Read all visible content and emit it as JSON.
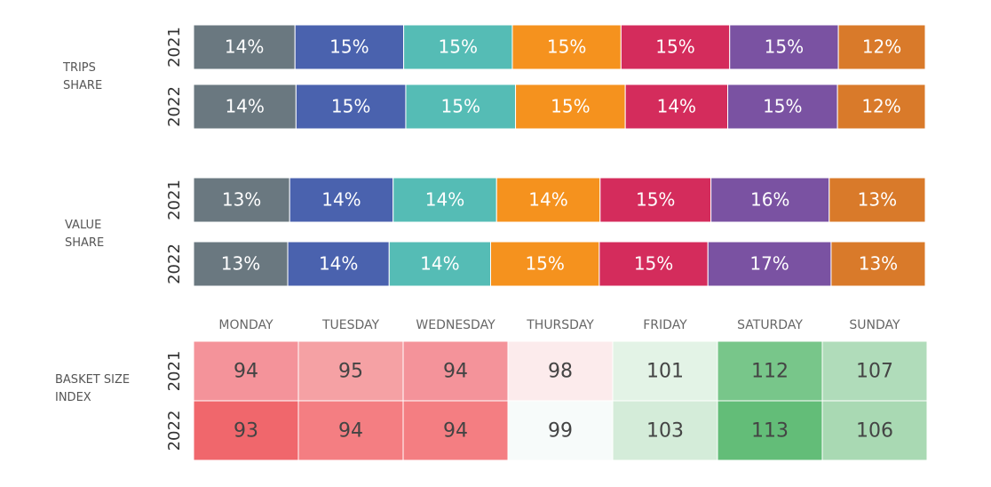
{
  "chart_data": [
    {
      "type": "bar",
      "title": "TRIPS SHARE",
      "categories": [
        "2021",
        "2022"
      ],
      "series": [
        {
          "color": "#6a7880",
          "values": [
            14,
            14
          ],
          "value_labels": [
            "14%",
            "14%"
          ]
        },
        {
          "color": "#4a62ae",
          "values": [
            15,
            15
          ],
          "value_labels": [
            "15%",
            "15%"
          ]
        },
        {
          "color": "#55bcb5",
          "values": [
            15,
            15
          ],
          "value_labels": [
            "15%",
            "15%"
          ]
        },
        {
          "color": "#f5921e",
          "values": [
            15,
            15
          ],
          "value_labels": [
            "15%",
            "15%"
          ]
        },
        {
          "color": "#d42c5c",
          "values": [
            15,
            14
          ],
          "value_labels": [
            "15%",
            "14%"
          ]
        },
        {
          "color": "#7a52a2",
          "values": [
            15,
            15
          ],
          "value_labels": [
            "15%",
            "15%"
          ]
        },
        {
          "color": "#d97a2a",
          "values": [
            12,
            12
          ],
          "value_labels": [
            "12%",
            "12%"
          ]
        }
      ]
    },
    {
      "type": "bar",
      "title": "VALUE SHARE",
      "categories": [
        "2021",
        "2022"
      ],
      "series": [
        {
          "color": "#6a7880",
          "values": [
            13,
            13
          ],
          "value_labels": [
            "13%",
            "13%"
          ]
        },
        {
          "color": "#4a62ae",
          "values": [
            14,
            14
          ],
          "value_labels": [
            "14%",
            "14%"
          ]
        },
        {
          "color": "#55bcb5",
          "values": [
            14,
            14
          ],
          "value_labels": [
            "14%",
            "14%"
          ]
        },
        {
          "color": "#f5921e",
          "values": [
            14,
            15
          ],
          "value_labels": [
            "14%",
            "15%"
          ]
        },
        {
          "color": "#d42c5c",
          "values": [
            15,
            15
          ],
          "value_labels": [
            "15%",
            "15%"
          ]
        },
        {
          "color": "#7a52a2",
          "values": [
            16,
            17
          ],
          "value_labels": [
            "16%",
            "17%"
          ]
        },
        {
          "color": "#d97a2a",
          "values": [
            13,
            13
          ],
          "value_labels": [
            "13%",
            "13%"
          ]
        }
      ]
    },
    {
      "type": "heatmap",
      "title": "BASKET SIZE INDEX",
      "x": [
        "MONDAY",
        "TUESDAY",
        "WEDNESDAY",
        "THURSDAY",
        "FRIDAY",
        "SATURDAY",
        "SUNDAY"
      ],
      "y": [
        "2021",
        "2022"
      ],
      "values": [
        [
          94,
          95,
          94,
          98,
          101,
          112,
          107
        ],
        [
          93,
          94,
          94,
          99,
          103,
          113,
          106
        ]
      ],
      "colors": [
        [
          "#f4939a",
          "#f5a1a4",
          "#f4939a",
          "#fcebec",
          "#e3f3e6",
          "#78c68a",
          "#b0dcba"
        ],
        [
          "#f0676c",
          "#f47e82",
          "#f47e82",
          "#f7fbfa",
          "#d4ecd9",
          "#63bd78",
          "#a9d9b3"
        ]
      ]
    }
  ]
}
